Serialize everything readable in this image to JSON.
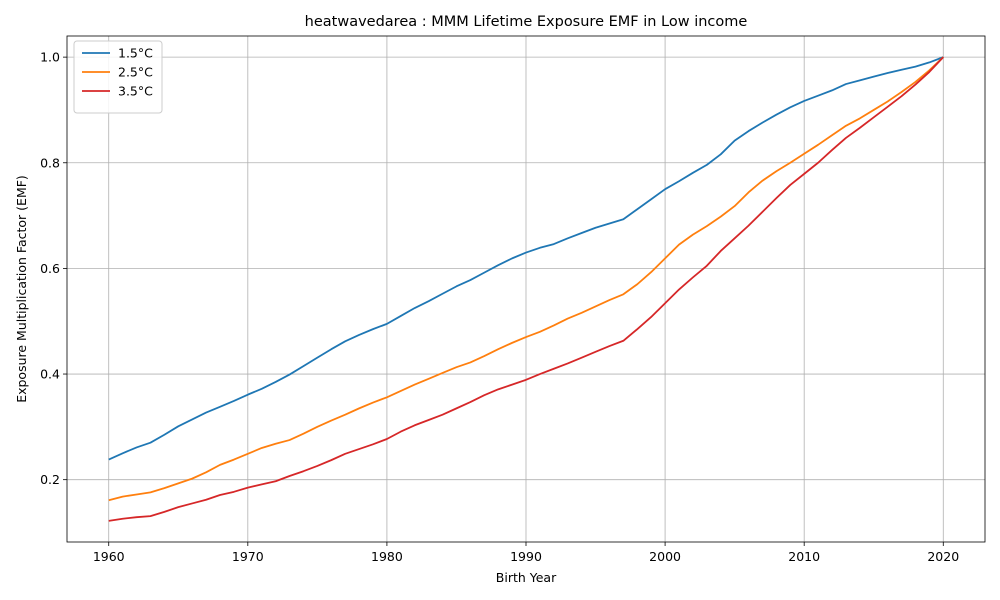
{
  "chart_data": {
    "type": "line",
    "title": "heatwavedarea : MMM Lifetime Exposure EMF in Low income",
    "xlabel": "Birth Year",
    "ylabel": "Exposure Multiplication Factor (EMF)",
    "xlim": [
      1957,
      2023
    ],
    "ylim": [
      0.082,
      1.04
    ],
    "xticks": [
      1960,
      1970,
      1980,
      1990,
      2000,
      2010,
      2020
    ],
    "xtick_labels": [
      "1960",
      "1970",
      "1980",
      "1990",
      "2000",
      "2010",
      "2020"
    ],
    "yticks": [
      0.2,
      0.4,
      0.6,
      0.8,
      1.0
    ],
    "ytick_labels": [
      "0.2",
      "0.4",
      "0.6",
      "0.8",
      "1.0"
    ],
    "grid": true,
    "legend_position": "top-left",
    "x": [
      1960,
      1961,
      1962,
      1963,
      1964,
      1965,
      1966,
      1967,
      1968,
      1969,
      1970,
      1971,
      1972,
      1973,
      1974,
      1975,
      1976,
      1977,
      1978,
      1979,
      1980,
      1981,
      1982,
      1983,
      1984,
      1985,
      1986,
      1987,
      1988,
      1989,
      1990,
      1991,
      1992,
      1993,
      1994,
      1995,
      1996,
      1997,
      1998,
      1999,
      2000,
      2001,
      2002,
      2003,
      2004,
      2005,
      2006,
      2007,
      2008,
      2009,
      2010,
      2011,
      2012,
      2013,
      2014,
      2015,
      2016,
      2017,
      2018,
      2019,
      2020
    ],
    "series": [
      {
        "name": "1.5°C",
        "color": "#1f77b4",
        "values": [
          0.238,
          0.25,
          0.261,
          0.27,
          0.285,
          0.301,
          0.314,
          0.327,
          0.338,
          0.349,
          0.361,
          0.372,
          0.385,
          0.399,
          0.415,
          0.431,
          0.447,
          0.462,
          0.474,
          0.485,
          0.495,
          0.51,
          0.525,
          0.538,
          0.552,
          0.566,
          0.578,
          0.592,
          0.606,
          0.619,
          0.63,
          0.639,
          0.646,
          0.657,
          0.667,
          0.677,
          0.685,
          0.693,
          0.712,
          0.731,
          0.75,
          0.765,
          0.781,
          0.796,
          0.816,
          0.842,
          0.86,
          0.876,
          0.891,
          0.905,
          0.917,
          0.927,
          0.937,
          0.949,
          0.956,
          0.963,
          0.97,
          0.976,
          0.982,
          0.99,
          1.0
        ]
      },
      {
        "name": "2.5°C",
        "color": "#ff7f0e",
        "values": [
          0.161,
          0.168,
          0.172,
          0.176,
          0.184,
          0.193,
          0.202,
          0.214,
          0.228,
          0.238,
          0.249,
          0.26,
          0.268,
          0.275,
          0.287,
          0.3,
          0.312,
          0.323,
          0.335,
          0.346,
          0.356,
          0.368,
          0.38,
          0.391,
          0.402,
          0.413,
          0.422,
          0.434,
          0.447,
          0.459,
          0.47,
          0.48,
          0.492,
          0.505,
          0.516,
          0.528,
          0.54,
          0.551,
          0.57,
          0.593,
          0.619,
          0.645,
          0.664,
          0.68,
          0.698,
          0.718,
          0.744,
          0.766,
          0.784,
          0.8,
          0.817,
          0.834,
          0.852,
          0.87,
          0.884,
          0.9,
          0.916,
          0.934,
          0.953,
          0.975,
          1.0
        ]
      },
      {
        "name": "3.5°C",
        "color": "#d62728",
        "values": [
          0.122,
          0.126,
          0.129,
          0.131,
          0.139,
          0.148,
          0.155,
          0.162,
          0.171,
          0.177,
          0.185,
          0.191,
          0.197,
          0.207,
          0.216,
          0.226,
          0.237,
          0.249,
          0.258,
          0.267,
          0.277,
          0.291,
          0.303,
          0.313,
          0.323,
          0.335,
          0.347,
          0.36,
          0.371,
          0.38,
          0.389,
          0.4,
          0.41,
          0.42,
          0.431,
          0.442,
          0.453,
          0.463,
          0.485,
          0.508,
          0.534,
          0.56,
          0.583,
          0.605,
          0.633,
          0.657,
          0.681,
          0.707,
          0.733,
          0.758,
          0.779,
          0.8,
          0.824,
          0.847,
          0.866,
          0.886,
          0.906,
          0.926,
          0.948,
          0.972,
          1.0
        ]
      }
    ]
  }
}
